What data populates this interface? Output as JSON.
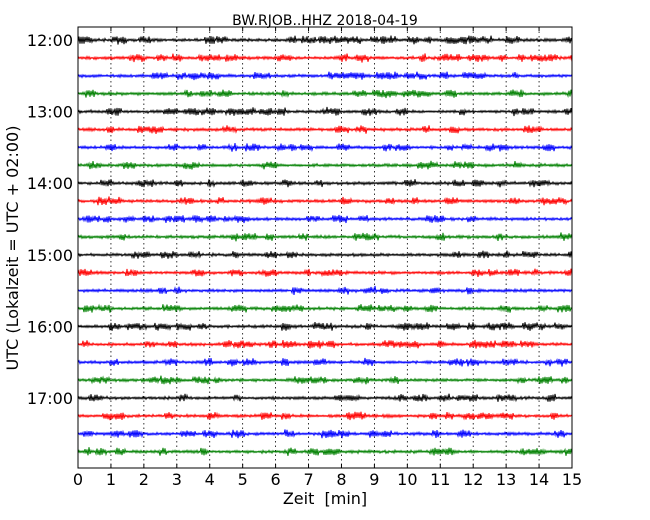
{
  "chart_data": {
    "type": "line",
    "title": "BW.RJOB..HHZ 2018-04-19",
    "xlabel": "Zeit  [min]",
    "ylabel": "UTC (Lokalzeit = UTC + 02:00)",
    "xlim": [
      0,
      15
    ],
    "x_ticks": [
      "0",
      "1",
      "2",
      "3",
      "4",
      "5",
      "6",
      "7",
      "8",
      "9",
      "10",
      "11",
      "12",
      "13",
      "14",
      "15"
    ],
    "y_ticks": [
      "12:00",
      "13:00",
      "14:00",
      "15:00",
      "16:00",
      "17:00"
    ],
    "grid": "vertical dotted",
    "colors": [
      "#000000",
      "#ff0000",
      "#0000ff",
      "#008000"
    ],
    "trace_start_times": [
      "12:00",
      "12:15",
      "12:30",
      "12:45",
      "13:00",
      "13:15",
      "13:30",
      "13:45",
      "14:00",
      "14:15",
      "14:30",
      "14:45",
      "15:00",
      "15:15",
      "15:30",
      "15:45",
      "16:00",
      "16:15",
      "16:30",
      "16:45",
      "17:00",
      "17:15",
      "17:30",
      "17:45"
    ],
    "trace_duration_min": 15
  }
}
